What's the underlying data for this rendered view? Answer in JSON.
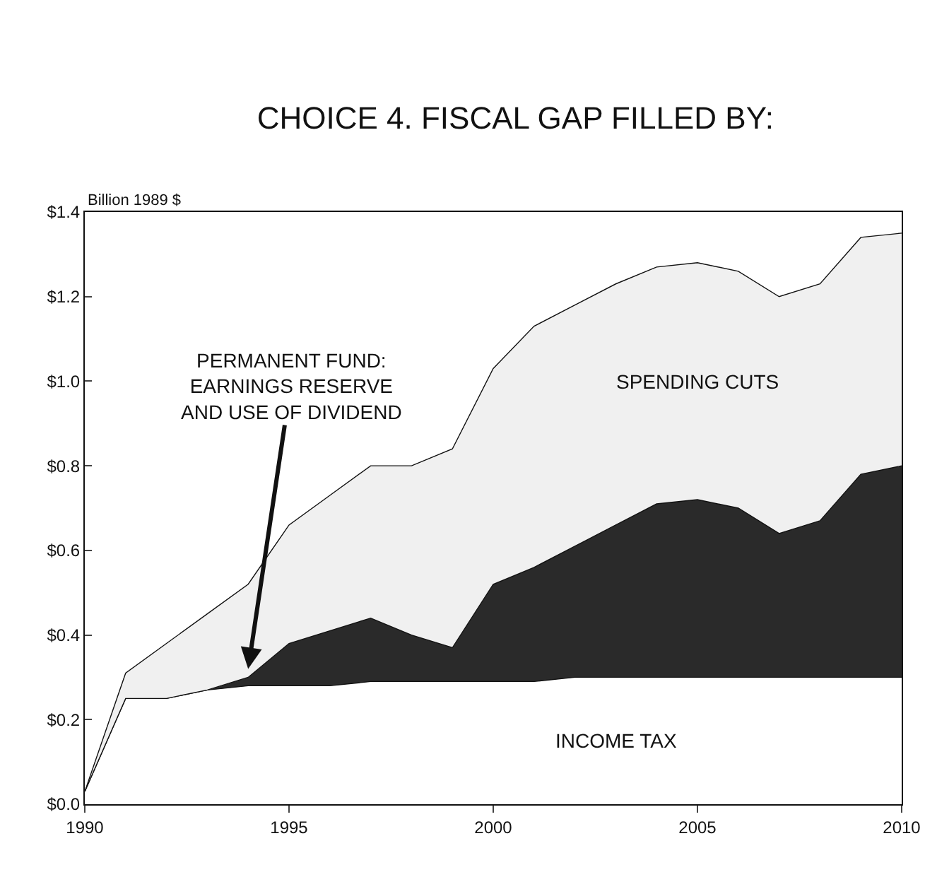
{
  "chart_data": {
    "type": "area",
    "title": "CHOICE 4. FISCAL GAP FILLED BY:",
    "ylabel": "Billion 1989 $",
    "x": [
      1990,
      1991,
      1992,
      1993,
      1994,
      1995,
      1996,
      1997,
      1998,
      1999,
      2000,
      2001,
      2002,
      2003,
      2004,
      2005,
      2006,
      2007,
      2008,
      2009,
      2010
    ],
    "stacked": true,
    "series": [
      {
        "name": "INCOME TAX",
        "color": "#ffffff",
        "values": [
          0.03,
          0.25,
          0.25,
          0.27,
          0.28,
          0.28,
          0.28,
          0.29,
          0.29,
          0.29,
          0.29,
          0.29,
          0.3,
          0.3,
          0.3,
          0.3,
          0.3,
          0.3,
          0.3,
          0.3,
          0.3
        ]
      },
      {
        "name": "PERMANENT FUND: EARNINGS RESERVE AND USE OF DIVIDEND",
        "color": "#2a2a2a",
        "values": [
          0,
          0,
          0,
          0,
          0.02,
          0.1,
          0.13,
          0.15,
          0.11,
          0.08,
          0.23,
          0.27,
          0.31,
          0.36,
          0.41,
          0.42,
          0.4,
          0.34,
          0.37,
          0.48,
          0.5
        ]
      },
      {
        "name": "SPENDING CUTS",
        "color": "#f0f0f0",
        "values": [
          0,
          0.06,
          0.13,
          0.18,
          0.22,
          0.28,
          0.32,
          0.36,
          0.4,
          0.47,
          0.51,
          0.57,
          0.57,
          0.57,
          0.56,
          0.56,
          0.56,
          0.56,
          0.56,
          0.56,
          0.55
        ]
      }
    ],
    "xlim": [
      1990,
      2010
    ],
    "xticks": [
      1990,
      1995,
      2000,
      2005,
      2010
    ],
    "ylim": [
      0,
      1.4
    ],
    "yticks": [
      {
        "value": 0,
        "label": "$0.0"
      },
      {
        "value": 0.2,
        "label": "$0.2"
      },
      {
        "value": 0.4,
        "label": "$0.4"
      },
      {
        "value": 0.6,
        "label": "$0.6"
      },
      {
        "value": 0.8,
        "label": "$0.8"
      },
      {
        "value": 1.0,
        "label": "$1.0"
      },
      {
        "value": 1.2,
        "label": "$1.2"
      },
      {
        "value": 1.4,
        "label": "$1.4"
      }
    ],
    "grid": false,
    "legend": false
  }
}
